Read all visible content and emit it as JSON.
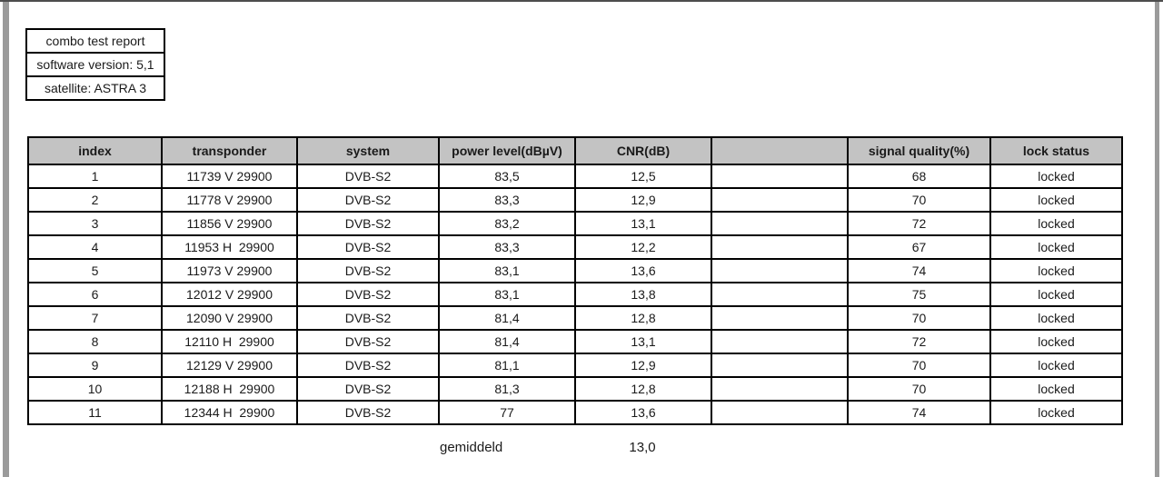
{
  "report_header": {
    "title": "combo test report",
    "software_version": "software version: 5,1",
    "satellite": "satellite: ASTRA 3"
  },
  "table": {
    "columns": [
      "index",
      "transponder",
      "system",
      "power level(dBµV)",
      "CNR(dB)",
      "",
      "signal quality(%)",
      "lock status"
    ],
    "rows": [
      [
        "1",
        "11739 V 29900",
        "DVB-S2",
        "83,5",
        "12,5",
        "",
        "68",
        "locked"
      ],
      [
        "2",
        "11778 V 29900",
        "DVB-S2",
        "83,3",
        "12,9",
        "",
        "70",
        "locked"
      ],
      [
        "3",
        "11856 V 29900",
        "DVB-S2",
        "83,2",
        "13,1",
        "",
        "72",
        "locked"
      ],
      [
        "4",
        "11953 H  29900",
        "DVB-S2",
        "83,3",
        "12,2",
        "",
        "67",
        "locked"
      ],
      [
        "5",
        "11973 V 29900",
        "DVB-S2",
        "83,1",
        "13,6",
        "",
        "74",
        "locked"
      ],
      [
        "6",
        "12012 V 29900",
        "DVB-S2",
        "83,1",
        "13,8",
        "",
        "75",
        "locked"
      ],
      [
        "7",
        "12090 V 29900",
        "DVB-S2",
        "81,4",
        "12,8",
        "",
        "70",
        "locked"
      ],
      [
        "8",
        "12110 H  29900",
        "DVB-S2",
        "81,4",
        "13,1",
        "",
        "72",
        "locked"
      ],
      [
        "9",
        "12129 V 29900",
        "DVB-S2",
        "81,1",
        "12,9",
        "",
        "70",
        "locked"
      ],
      [
        "10",
        "12188 H  29900",
        "DVB-S2",
        "81,3",
        "12,8",
        "",
        "70",
        "locked"
      ],
      [
        "11",
        "12344 H  29900",
        "DVB-S2",
        "77",
        "13,6",
        "",
        "74",
        "locked"
      ]
    ],
    "summary": {
      "label": "gemiddeld",
      "value": "13,0"
    }
  },
  "colors": {
    "table_header_bg": "#c3c3c3",
    "table_border": "#000000",
    "page_margin_gray": "#9b9b9b",
    "window_top_line": "#4d4d4d"
  }
}
